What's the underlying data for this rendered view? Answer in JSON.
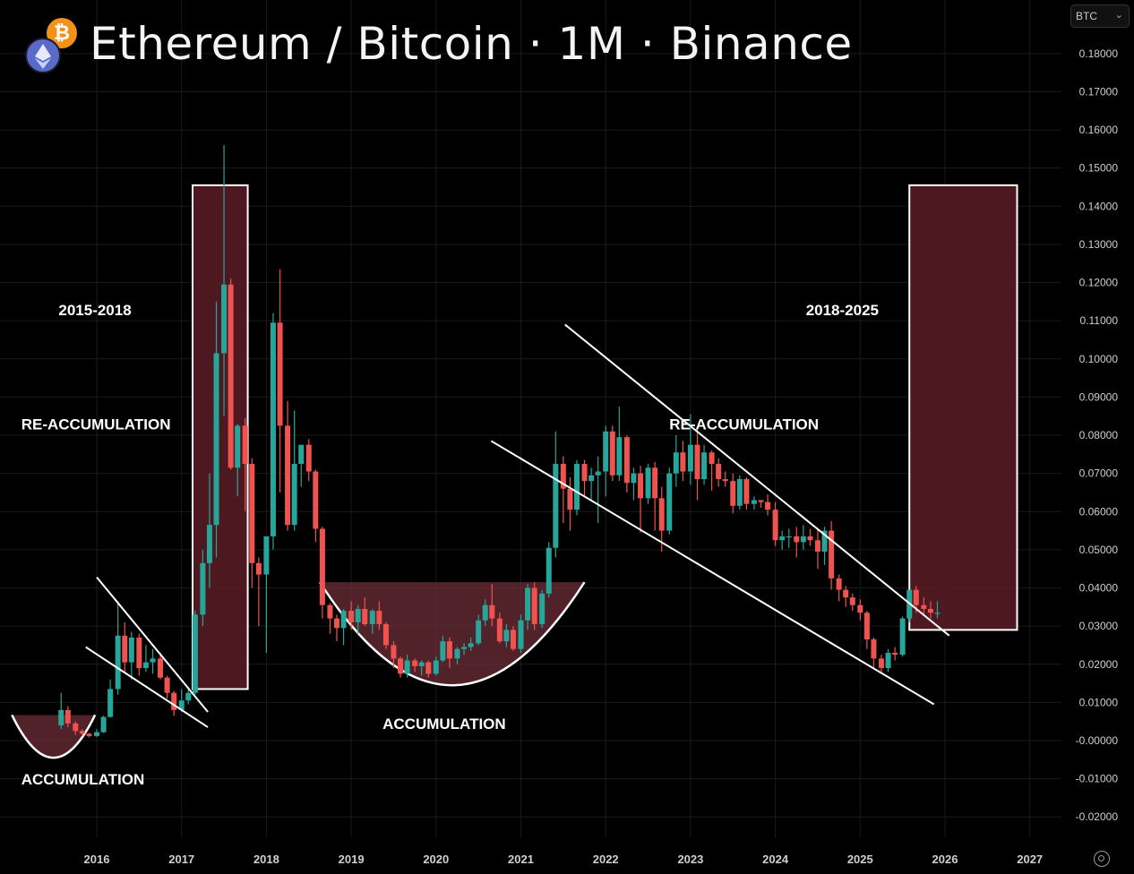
{
  "header": {
    "title": "Ethereum / Bitcoin · 1M · Binance",
    "eth_icon": "ethereum-icon",
    "btc_icon": "bitcoin-icon",
    "btc_glyph": "₿"
  },
  "toolbar": {
    "currency_label": "BTC",
    "chevron": "⌄",
    "settings_icon": "gear-icon"
  },
  "colors": {
    "up": "#26a69a",
    "down": "#ef5350",
    "zone_fill": "#5a1c24",
    "zone_stroke": "#ffffff",
    "cup_fill": "#6e2e38",
    "trend_line": "#ffffff",
    "grid": "#1a1a1a",
    "axis_text": "#cfcfcf"
  },
  "chart_data": {
    "type": "candlestick",
    "title": "Ethereum / Bitcoin · 1M · Binance",
    "x_axis": {
      "ticks": [
        "2016",
        "2017",
        "2018",
        "2019",
        "2020",
        "2021",
        "2022",
        "2023",
        "2024",
        "2025",
        "2026",
        "2027"
      ],
      "range": [
        2015.3,
        2027.3
      ]
    },
    "y_axis": {
      "ticks": [
        0.18,
        0.17,
        0.16,
        0.15,
        0.14,
        0.13,
        0.12,
        0.11,
        0.1,
        0.09,
        0.08,
        0.07,
        0.06,
        0.05,
        0.04,
        0.03,
        0.02,
        0.01,
        -0.0,
        -0.01,
        -0.02
      ],
      "tick_labels": [
        "0.18000",
        "0.17000",
        "0.16000",
        "0.15000",
        "0.14000",
        "0.13000",
        "0.12000",
        "0.11000",
        "0.10000",
        "0.09000",
        "0.08000",
        "0.07000",
        "0.06000",
        "0.05000",
        "0.04000",
        "0.03000",
        "0.02000",
        "0.01000",
        "-0.00000",
        "-0.01000",
        "-0.02000"
      ],
      "range": [
        -0.025,
        0.19
      ],
      "position": "right"
    },
    "candles": [
      {
        "t": 2015.58,
        "o": 0.004,
        "h": 0.0125,
        "l": 0.003,
        "c": 0.008
      },
      {
        "t": 2015.66,
        "o": 0.008,
        "h": 0.009,
        "l": 0.0035,
        "c": 0.0045
      },
      {
        "t": 2015.75,
        "o": 0.0045,
        "h": 0.005,
        "l": 0.0015,
        "c": 0.0025
      },
      {
        "t": 2015.83,
        "o": 0.0025,
        "h": 0.003,
        "l": 0.0012,
        "c": 0.0018
      },
      {
        "t": 2015.91,
        "o": 0.0018,
        "h": 0.002,
        "l": 0.0008,
        "c": 0.0012
      },
      {
        "t": 2016.0,
        "o": 0.0012,
        "h": 0.003,
        "l": 0.0009,
        "c": 0.0022
      },
      {
        "t": 2016.08,
        "o": 0.0022,
        "h": 0.0065,
        "l": 0.002,
        "c": 0.0062
      },
      {
        "t": 2016.16,
        "o": 0.0062,
        "h": 0.016,
        "l": 0.006,
        "c": 0.0135
      },
      {
        "t": 2016.25,
        "o": 0.0135,
        "h": 0.0365,
        "l": 0.012,
        "c": 0.0275
      },
      {
        "t": 2016.33,
        "o": 0.0275,
        "h": 0.031,
        "l": 0.018,
        "c": 0.0205
      },
      {
        "t": 2016.41,
        "o": 0.0205,
        "h": 0.0285,
        "l": 0.016,
        "c": 0.027
      },
      {
        "t": 2016.5,
        "o": 0.027,
        "h": 0.028,
        "l": 0.017,
        "c": 0.019
      },
      {
        "t": 2016.58,
        "o": 0.019,
        "h": 0.025,
        "l": 0.018,
        "c": 0.0205
      },
      {
        "t": 2016.66,
        "o": 0.0205,
        "h": 0.024,
        "l": 0.0175,
        "c": 0.0215
      },
      {
        "t": 2016.75,
        "o": 0.0215,
        "h": 0.023,
        "l": 0.016,
        "c": 0.0165
      },
      {
        "t": 2016.83,
        "o": 0.0165,
        "h": 0.017,
        "l": 0.011,
        "c": 0.0125
      },
      {
        "t": 2016.91,
        "o": 0.0125,
        "h": 0.013,
        "l": 0.0065,
        "c": 0.008
      },
      {
        "t": 2017.0,
        "o": 0.008,
        "h": 0.0135,
        "l": 0.0075,
        "c": 0.0105
      },
      {
        "t": 2017.08,
        "o": 0.0105,
        "h": 0.014,
        "l": 0.0095,
        "c": 0.0125
      },
      {
        "t": 2017.16,
        "o": 0.0125,
        "h": 0.034,
        "l": 0.012,
        "c": 0.033
      },
      {
        "t": 2017.25,
        "o": 0.033,
        "h": 0.05,
        "l": 0.03,
        "c": 0.0465
      },
      {
        "t": 2017.33,
        "o": 0.0465,
        "h": 0.07,
        "l": 0.04,
        "c": 0.0565
      },
      {
        "t": 2017.41,
        "o": 0.0565,
        "h": 0.115,
        "l": 0.048,
        "c": 0.1015
      },
      {
        "t": 2017.5,
        "o": 0.1015,
        "h": 0.156,
        "l": 0.085,
        "c": 0.1195
      },
      {
        "t": 2017.58,
        "o": 0.1195,
        "h": 0.121,
        "l": 0.071,
        "c": 0.0715
      },
      {
        "t": 2017.66,
        "o": 0.0715,
        "h": 0.083,
        "l": 0.064,
        "c": 0.0825
      },
      {
        "t": 2017.75,
        "o": 0.0825,
        "h": 0.0845,
        "l": 0.06,
        "c": 0.0725
      },
      {
        "t": 2017.83,
        "o": 0.0725,
        "h": 0.074,
        "l": 0.04,
        "c": 0.0465
      },
      {
        "t": 2017.91,
        "o": 0.0465,
        "h": 0.048,
        "l": 0.03,
        "c": 0.0435
      },
      {
        "t": 2018.0,
        "o": 0.0435,
        "h": 0.052,
        "l": 0.023,
        "c": 0.0535
      },
      {
        "t": 2018.08,
        "o": 0.0535,
        "h": 0.112,
        "l": 0.05,
        "c": 0.1095
      },
      {
        "t": 2018.16,
        "o": 0.1095,
        "h": 0.1235,
        "l": 0.065,
        "c": 0.0825
      },
      {
        "t": 2018.25,
        "o": 0.0825,
        "h": 0.089,
        "l": 0.055,
        "c": 0.0565
      },
      {
        "t": 2018.33,
        "o": 0.0565,
        "h": 0.0865,
        "l": 0.055,
        "c": 0.0725
      },
      {
        "t": 2018.41,
        "o": 0.0725,
        "h": 0.077,
        "l": 0.0665,
        "c": 0.0775
      },
      {
        "t": 2018.5,
        "o": 0.0775,
        "h": 0.079,
        "l": 0.068,
        "c": 0.0705
      },
      {
        "t": 2018.58,
        "o": 0.0705,
        "h": 0.071,
        "l": 0.052,
        "c": 0.0555
      },
      {
        "t": 2018.66,
        "o": 0.0555,
        "h": 0.056,
        "l": 0.032,
        "c": 0.0355
      },
      {
        "t": 2018.75,
        "o": 0.0355,
        "h": 0.036,
        "l": 0.028,
        "c": 0.032
      },
      {
        "t": 2018.83,
        "o": 0.032,
        "h": 0.033,
        "l": 0.026,
        "c": 0.0295
      },
      {
        "t": 2018.91,
        "o": 0.0295,
        "h": 0.0345,
        "l": 0.025,
        "c": 0.034
      },
      {
        "t": 2019.0,
        "o": 0.034,
        "h": 0.0365,
        "l": 0.029,
        "c": 0.031
      },
      {
        "t": 2019.08,
        "o": 0.031,
        "h": 0.0355,
        "l": 0.028,
        "c": 0.0345
      },
      {
        "t": 2019.16,
        "o": 0.0345,
        "h": 0.0375,
        "l": 0.03,
        "c": 0.0305
      },
      {
        "t": 2019.25,
        "o": 0.0305,
        "h": 0.0345,
        "l": 0.028,
        "c": 0.034
      },
      {
        "t": 2019.33,
        "o": 0.034,
        "h": 0.0365,
        "l": 0.029,
        "c": 0.0305
      },
      {
        "t": 2019.41,
        "o": 0.0305,
        "h": 0.031,
        "l": 0.024,
        "c": 0.025
      },
      {
        "t": 2019.5,
        "o": 0.025,
        "h": 0.026,
        "l": 0.019,
        "c": 0.0215
      },
      {
        "t": 2019.58,
        "o": 0.0215,
        "h": 0.022,
        "l": 0.0165,
        "c": 0.0175
      },
      {
        "t": 2019.66,
        "o": 0.0175,
        "h": 0.0225,
        "l": 0.0165,
        "c": 0.021
      },
      {
        "t": 2019.75,
        "o": 0.021,
        "h": 0.0215,
        "l": 0.018,
        "c": 0.0195
      },
      {
        "t": 2019.83,
        "o": 0.0195,
        "h": 0.021,
        "l": 0.017,
        "c": 0.0205
      },
      {
        "t": 2019.91,
        "o": 0.0205,
        "h": 0.021,
        "l": 0.0165,
        "c": 0.0175
      },
      {
        "t": 2020.0,
        "o": 0.0175,
        "h": 0.022,
        "l": 0.017,
        "c": 0.021
      },
      {
        "t": 2020.08,
        "o": 0.021,
        "h": 0.0275,
        "l": 0.0205,
        "c": 0.026
      },
      {
        "t": 2020.16,
        "o": 0.026,
        "h": 0.027,
        "l": 0.019,
        "c": 0.0215
      },
      {
        "t": 2020.25,
        "o": 0.0215,
        "h": 0.0245,
        "l": 0.02,
        "c": 0.024
      },
      {
        "t": 2020.33,
        "o": 0.024,
        "h": 0.0255,
        "l": 0.0225,
        "c": 0.0245
      },
      {
        "t": 2020.41,
        "o": 0.0245,
        "h": 0.027,
        "l": 0.0235,
        "c": 0.0255
      },
      {
        "t": 2020.5,
        "o": 0.0255,
        "h": 0.033,
        "l": 0.025,
        "c": 0.0315
      },
      {
        "t": 2020.58,
        "o": 0.0315,
        "h": 0.037,
        "l": 0.03,
        "c": 0.0355
      },
      {
        "t": 2020.66,
        "o": 0.0355,
        "h": 0.041,
        "l": 0.03,
        "c": 0.032
      },
      {
        "t": 2020.75,
        "o": 0.032,
        "h": 0.0335,
        "l": 0.0255,
        "c": 0.026
      },
      {
        "t": 2020.83,
        "o": 0.026,
        "h": 0.0305,
        "l": 0.0245,
        "c": 0.029
      },
      {
        "t": 2020.91,
        "o": 0.029,
        "h": 0.03,
        "l": 0.0235,
        "c": 0.024
      },
      {
        "t": 2021.0,
        "o": 0.024,
        "h": 0.033,
        "l": 0.023,
        "c": 0.0315
      },
      {
        "t": 2021.08,
        "o": 0.0315,
        "h": 0.041,
        "l": 0.029,
        "c": 0.04
      },
      {
        "t": 2021.16,
        "o": 0.04,
        "h": 0.0415,
        "l": 0.029,
        "c": 0.0305
      },
      {
        "t": 2021.25,
        "o": 0.0305,
        "h": 0.0395,
        "l": 0.0295,
        "c": 0.0385
      },
      {
        "t": 2021.33,
        "o": 0.0385,
        "h": 0.052,
        "l": 0.0375,
        "c": 0.0505
      },
      {
        "t": 2021.41,
        "o": 0.0505,
        "h": 0.081,
        "l": 0.048,
        "c": 0.0725
      },
      {
        "t": 2021.5,
        "o": 0.0725,
        "h": 0.0745,
        "l": 0.057,
        "c": 0.066
      },
      {
        "t": 2021.58,
        "o": 0.066,
        "h": 0.069,
        "l": 0.055,
        "c": 0.0605
      },
      {
        "t": 2021.66,
        "o": 0.0605,
        "h": 0.0735,
        "l": 0.059,
        "c": 0.0725
      },
      {
        "t": 2021.75,
        "o": 0.0725,
        "h": 0.0735,
        "l": 0.064,
        "c": 0.068
      },
      {
        "t": 2021.83,
        "o": 0.068,
        "h": 0.0715,
        "l": 0.063,
        "c": 0.0695
      },
      {
        "t": 2021.91,
        "o": 0.0695,
        "h": 0.0745,
        "l": 0.057,
        "c": 0.0705
      },
      {
        "t": 2022.0,
        "o": 0.0705,
        "h": 0.0825,
        "l": 0.064,
        "c": 0.081
      },
      {
        "t": 2022.08,
        "o": 0.081,
        "h": 0.0825,
        "l": 0.068,
        "c": 0.0695
      },
      {
        "t": 2022.16,
        "o": 0.0695,
        "h": 0.0875,
        "l": 0.068,
        "c": 0.0795
      },
      {
        "t": 2022.25,
        "o": 0.0795,
        "h": 0.08,
        "l": 0.065,
        "c": 0.0675
      },
      {
        "t": 2022.33,
        "o": 0.0675,
        "h": 0.0715,
        "l": 0.063,
        "c": 0.07
      },
      {
        "t": 2022.41,
        "o": 0.07,
        "h": 0.072,
        "l": 0.0545,
        "c": 0.0635
      },
      {
        "t": 2022.5,
        "o": 0.0635,
        "h": 0.0725,
        "l": 0.062,
        "c": 0.0715
      },
      {
        "t": 2022.58,
        "o": 0.0715,
        "h": 0.073,
        "l": 0.055,
        "c": 0.0635
      },
      {
        "t": 2022.66,
        "o": 0.0635,
        "h": 0.0665,
        "l": 0.0495,
        "c": 0.055
      },
      {
        "t": 2022.75,
        "o": 0.055,
        "h": 0.0715,
        "l": 0.054,
        "c": 0.07
      },
      {
        "t": 2022.83,
        "o": 0.07,
        "h": 0.08,
        "l": 0.0665,
        "c": 0.0755
      },
      {
        "t": 2022.91,
        "o": 0.0755,
        "h": 0.0785,
        "l": 0.068,
        "c": 0.0705
      },
      {
        "t": 2023.0,
        "o": 0.0705,
        "h": 0.0855,
        "l": 0.067,
        "c": 0.0775
      },
      {
        "t": 2023.08,
        "o": 0.0775,
        "h": 0.0815,
        "l": 0.063,
        "c": 0.0685
      },
      {
        "t": 2023.16,
        "o": 0.0685,
        "h": 0.0775,
        "l": 0.067,
        "c": 0.0755
      },
      {
        "t": 2023.25,
        "o": 0.0755,
        "h": 0.076,
        "l": 0.0655,
        "c": 0.0725
      },
      {
        "t": 2023.33,
        "o": 0.0725,
        "h": 0.074,
        "l": 0.0665,
        "c": 0.0685
      },
      {
        "t": 2023.41,
        "o": 0.0685,
        "h": 0.0705,
        "l": 0.0665,
        "c": 0.068
      },
      {
        "t": 2023.5,
        "o": 0.068,
        "h": 0.07,
        "l": 0.0595,
        "c": 0.0615
      },
      {
        "t": 2023.58,
        "o": 0.0615,
        "h": 0.0695,
        "l": 0.0605,
        "c": 0.0685
      },
      {
        "t": 2023.66,
        "o": 0.0685,
        "h": 0.069,
        "l": 0.0605,
        "c": 0.062
      },
      {
        "t": 2023.75,
        "o": 0.062,
        "h": 0.064,
        "l": 0.0605,
        "c": 0.063
      },
      {
        "t": 2023.83,
        "o": 0.063,
        "h": 0.063,
        "l": 0.061,
        "c": 0.0625
      },
      {
        "t": 2023.91,
        "o": 0.0625,
        "h": 0.0645,
        "l": 0.059,
        "c": 0.0605
      },
      {
        "t": 2024.0,
        "o": 0.0605,
        "h": 0.0625,
        "l": 0.051,
        "c": 0.0525
      },
      {
        "t": 2024.08,
        "o": 0.0525,
        "h": 0.055,
        "l": 0.05,
        "c": 0.0535
      },
      {
        "t": 2024.16,
        "o": 0.0535,
        "h": 0.0555,
        "l": 0.0505,
        "c": 0.0535
      },
      {
        "t": 2024.25,
        "o": 0.0535,
        "h": 0.056,
        "l": 0.048,
        "c": 0.052
      },
      {
        "t": 2024.33,
        "o": 0.052,
        "h": 0.0565,
        "l": 0.05,
        "c": 0.0535
      },
      {
        "t": 2024.41,
        "o": 0.0535,
        "h": 0.0555,
        "l": 0.051,
        "c": 0.0525
      },
      {
        "t": 2024.5,
        "o": 0.0525,
        "h": 0.0555,
        "l": 0.045,
        "c": 0.0495
      },
      {
        "t": 2024.58,
        "o": 0.0495,
        "h": 0.056,
        "l": 0.046,
        "c": 0.055
      },
      {
        "t": 2024.66,
        "o": 0.055,
        "h": 0.0575,
        "l": 0.0395,
        "c": 0.0425
      },
      {
        "t": 2024.75,
        "o": 0.0425,
        "h": 0.0435,
        "l": 0.0365,
        "c": 0.0395
      },
      {
        "t": 2024.83,
        "o": 0.0395,
        "h": 0.0405,
        "l": 0.035,
        "c": 0.0375
      },
      {
        "t": 2024.91,
        "o": 0.0375,
        "h": 0.0385,
        "l": 0.034,
        "c": 0.0355
      },
      {
        "t": 2025.0,
        "o": 0.0355,
        "h": 0.037,
        "l": 0.0315,
        "c": 0.0335
      },
      {
        "t": 2025.08,
        "o": 0.0335,
        "h": 0.034,
        "l": 0.024,
        "c": 0.0265
      },
      {
        "t": 2025.16,
        "o": 0.0265,
        "h": 0.027,
        "l": 0.019,
        "c": 0.0215
      },
      {
        "t": 2025.25,
        "o": 0.0215,
        "h": 0.0225,
        "l": 0.0175,
        "c": 0.019
      },
      {
        "t": 2025.33,
        "o": 0.019,
        "h": 0.024,
        "l": 0.018,
        "c": 0.023
      },
      {
        "t": 2025.41,
        "o": 0.023,
        "h": 0.0245,
        "l": 0.021,
        "c": 0.0225
      },
      {
        "t": 2025.5,
        "o": 0.0225,
        "h": 0.0325,
        "l": 0.022,
        "c": 0.032
      },
      {
        "t": 2025.58,
        "o": 0.032,
        "h": 0.0395,
        "l": 0.031,
        "c": 0.0395
      },
      {
        "t": 2025.66,
        "o": 0.0395,
        "h": 0.0405,
        "l": 0.0335,
        "c": 0.0355
      },
      {
        "t": 2025.75,
        "o": 0.0355,
        "h": 0.0375,
        "l": 0.033,
        "c": 0.0345
      },
      {
        "t": 2025.83,
        "o": 0.0345,
        "h": 0.0365,
        "l": 0.032,
        "c": 0.0335
      },
      {
        "t": 2025.91,
        "o": 0.0335,
        "h": 0.0365,
        "l": 0.032,
        "c": 0.0335
      }
    ],
    "annotations": {
      "labels": [
        {
          "text": "2015-2018",
          "t": 2015.55,
          "v": 0.1115,
          "anchor": "start"
        },
        {
          "text": "RE-ACCUMULATION",
          "t": 2015.11,
          "v": 0.0815,
          "anchor": "start"
        },
        {
          "text": "ACCUMULATION",
          "t": 2015.11,
          "v": -0.0115,
          "anchor": "start"
        },
        {
          "text": "ACCUMULATION",
          "t": 2019.37,
          "v": 0.0031,
          "anchor": "start"
        },
        {
          "text": "2018-2025",
          "t": 2024.36,
          "v": 0.1115,
          "anchor": "start"
        },
        {
          "text": "RE-ACCUMULATION",
          "t": 2022.75,
          "v": 0.0815,
          "anchor": "start"
        }
      ],
      "zones": [
        {
          "t0": 2017.13,
          "t1": 2017.78,
          "v0": 0.0135,
          "v1": 0.1455
        },
        {
          "t0": 2025.58,
          "t1": 2026.85,
          "v0": 0.029,
          "v1": 0.1455
        }
      ],
      "bowls": [
        {
          "t0": 2015.0,
          "t1": 2015.98,
          "v_rim": 0.0067,
          "v_bottom": -0.0045
        },
        {
          "t0": 2018.63,
          "t1": 2021.75,
          "v_rim": 0.0415,
          "v_bottom": 0.0145
        }
      ],
      "trend_lines": [
        {
          "t0": 2016.0,
          "v0": 0.0428,
          "t1": 2017.31,
          "v1": 0.0075
        },
        {
          "t0": 2015.87,
          "v0": 0.0245,
          "t1": 2017.31,
          "v1": 0.0035
        },
        {
          "t0": 2021.52,
          "v0": 0.109,
          "t1": 2026.05,
          "v1": 0.0275
        },
        {
          "t0": 2020.65,
          "v0": 0.0785,
          "t1": 2025.87,
          "v1": 0.0095
        }
      ]
    }
  }
}
